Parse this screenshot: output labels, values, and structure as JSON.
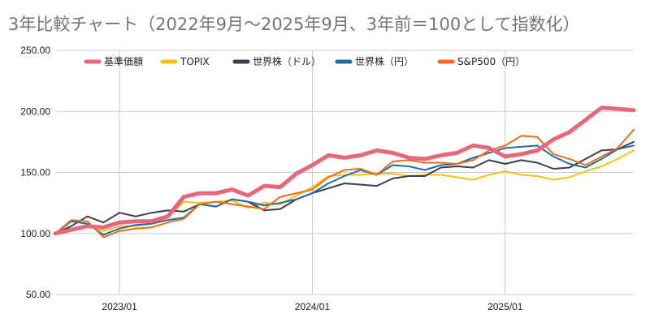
{
  "chart_data": {
    "type": "line",
    "title": "3年比較チャート（2022年9月〜2025年9月、3年前＝100として指数化）",
    "xlabel": "",
    "ylabel": "",
    "ylim": [
      50,
      250
    ],
    "yticks": [
      "50.00",
      "100.00",
      "150.00",
      "200.00",
      "250.00"
    ],
    "x": [
      "2022/09",
      "2022/10",
      "2022/11",
      "2022/12",
      "2023/01",
      "2023/02",
      "2023/03",
      "2023/04",
      "2023/05",
      "2023/06",
      "2023/07",
      "2023/08",
      "2023/09",
      "2023/10",
      "2023/11",
      "2023/12",
      "2024/01",
      "2024/02",
      "2024/03",
      "2024/04",
      "2024/05",
      "2024/06",
      "2024/07",
      "2024/08",
      "2024/09",
      "2024/10",
      "2024/11",
      "2024/12",
      "2025/01",
      "2025/02",
      "2025/03",
      "2025/04",
      "2025/05",
      "2025/06",
      "2025/07",
      "2025/08",
      "2025/09"
    ],
    "xticks": [
      {
        "index": 4,
        "label": "2023/01"
      },
      {
        "index": 16,
        "label": "2024/01"
      },
      {
        "index": 28,
        "label": "2025/01"
      }
    ],
    "grid": {
      "horizontal": true,
      "vertical": true
    },
    "legend_position": "top",
    "series": [
      {
        "name": "基準価額",
        "color": "#e8677a",
        "width": 5,
        "values": [
          100,
          103,
          106,
          105,
          109,
          110,
          110,
          114,
          130,
          133,
          133,
          136,
          131,
          139,
          138,
          149,
          156,
          164,
          162,
          164,
          168,
          166,
          162,
          161,
          164,
          166,
          172,
          170,
          163,
          165,
          168,
          177,
          183,
          193,
          203,
          202,
          201
        ]
      },
      {
        "name": "TOPIX",
        "color": "#f4c20d",
        "width": 2,
        "values": [
          100,
          103,
          107,
          102,
          106,
          106,
          108,
          113,
          126,
          125,
          126,
          127,
          121,
          125,
          124,
          131,
          138,
          147,
          148,
          148,
          149,
          149,
          147,
          148,
          148,
          146,
          144,
          148,
          151,
          148,
          147,
          144,
          146,
          151,
          155,
          161,
          168
        ]
      },
      {
        "name": "世界株（ドル）",
        "color": "#3d3d4f",
        "width": 2,
        "values": [
          100,
          106,
          114,
          109,
          117,
          114,
          117,
          119,
          118,
          124,
          122,
          128,
          126,
          119,
          120,
          128,
          133,
          137,
          141,
          140,
          139,
          145,
          147,
          147,
          154,
          155,
          154,
          160,
          157,
          160,
          158,
          153,
          154,
          161,
          168,
          169,
          175
        ]
      },
      {
        "name": "世界株（円）",
        "color": "#1c6ea4",
        "width": 2,
        "values": [
          100,
          110,
          108,
          99,
          104,
          107,
          108,
          111,
          113,
          124,
          122,
          128,
          126,
          123,
          125,
          128,
          133,
          141,
          147,
          152,
          148,
          156,
          155,
          152,
          156,
          157,
          162,
          166,
          170,
          171,
          172,
          163,
          157,
          154,
          161,
          169,
          172
        ]
      },
      {
        "name": "S&P500（円）",
        "color": "#f26b1d",
        "width": 2,
        "values": [
          100,
          111,
          110,
          97,
          102,
          104,
          105,
          109,
          112,
          124,
          126,
          124,
          122,
          120,
          130,
          133,
          136,
          146,
          152,
          153,
          148,
          159,
          160,
          158,
          158,
          157,
          160,
          168,
          172,
          180,
          179,
          165,
          161,
          156,
          163,
          170,
          185
        ]
      }
    ]
  }
}
